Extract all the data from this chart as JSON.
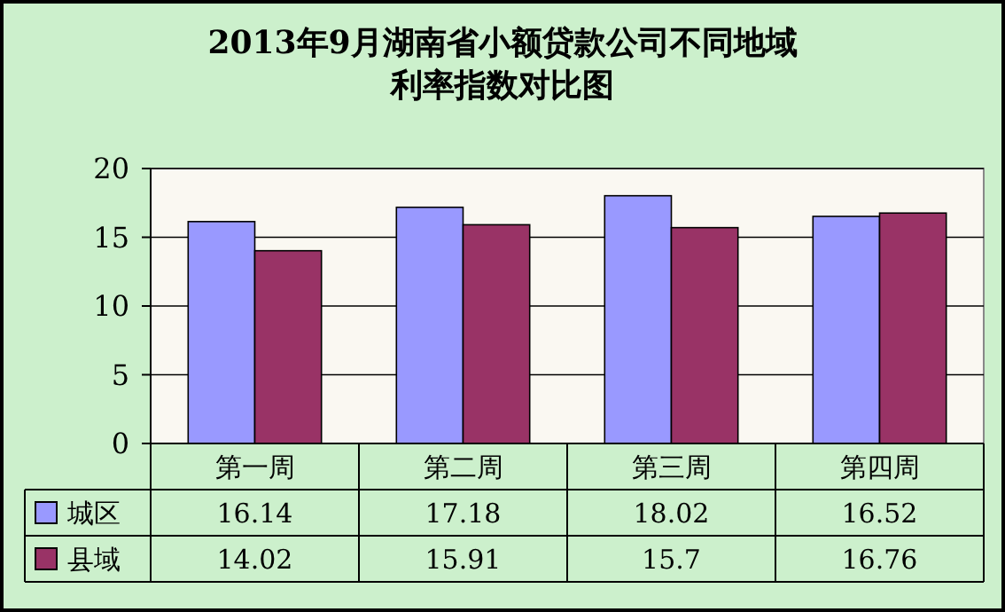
{
  "chart_data": {
    "type": "bar",
    "title": "2013年9月湖南省小额贷款公司不同地域利率指数对比图",
    "categories": [
      "第一周",
      "第二周",
      "第三周",
      "第四周"
    ],
    "series": [
      {
        "name": "城区",
        "color": "#9999ff",
        "values": [
          16.14,
          17.18,
          18.02,
          16.52
        ]
      },
      {
        "name": "县域",
        "color": "#993366",
        "values": [
          14.02,
          15.91,
          15.7,
          16.76
        ]
      }
    ],
    "ylim": [
      0,
      20
    ],
    "yticks": [
      0,
      5,
      10,
      15,
      20
    ],
    "grid": "y",
    "legend": "bottom",
    "data_labels": true
  }
}
